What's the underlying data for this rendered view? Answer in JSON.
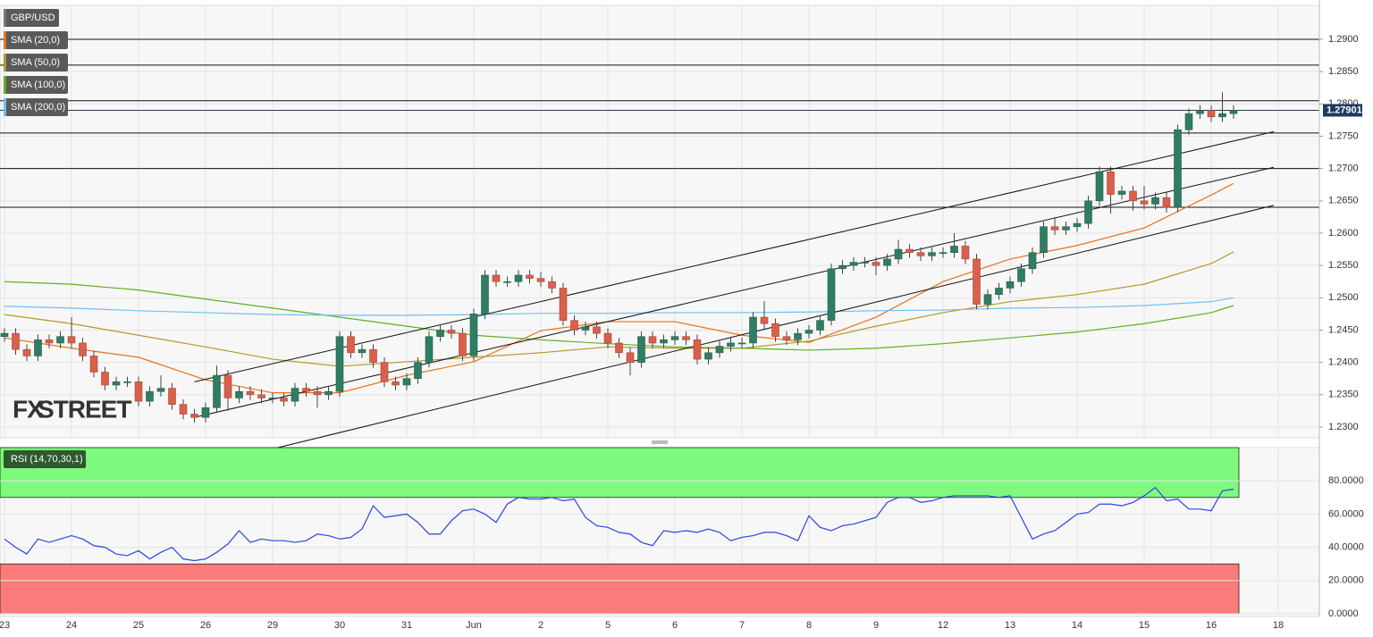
{
  "chart_data": [
    {
      "type": "candlestick",
      "title": "GBP/USD",
      "watermark": [
        "FX",
        "STREET"
      ],
      "up_color": "#2f7d62",
      "down_color": "#d9604a",
      "open": [
        1.244,
        1.2445,
        1.242,
        1.241,
        1.2435,
        1.243,
        1.244,
        1.243,
        1.241,
        1.2385,
        1.2365,
        1.237,
        1.237,
        1.234,
        1.2355,
        1.236,
        1.2335,
        1.232,
        1.2315,
        1.233,
        1.238,
        1.2345,
        1.2355,
        1.235,
        1.2345,
        1.2345,
        1.234,
        1.236,
        1.2355,
        1.235,
        1.2355,
        1.244,
        1.2415,
        1.242,
        1.24,
        1.237,
        1.2365,
        1.2375,
        1.24,
        1.244,
        1.245,
        1.2445,
        1.241,
        1.2475,
        1.2535,
        1.2525,
        1.2525,
        1.2535,
        1.253,
        1.2525,
        1.2515,
        1.2465,
        1.245,
        1.2455,
        1.2445,
        1.243,
        1.2415,
        1.24,
        1.244,
        1.243,
        1.2435,
        1.244,
        1.2435,
        1.2405,
        1.2415,
        1.2425,
        1.243,
        1.243,
        1.247,
        1.246,
        1.244,
        1.2435,
        1.2445,
        1.245,
        1.2465,
        1.2545,
        1.255,
        1.2555,
        1.2555,
        1.255,
        1.256,
        1.2575,
        1.257,
        1.2565,
        1.257,
        1.257,
        1.258,
        1.256,
        1.249,
        1.2505,
        1.2515,
        1.2525,
        1.2545,
        1.257,
        1.261,
        1.2605,
        1.261,
        1.2615,
        1.265,
        1.2695,
        1.266,
        1.2665,
        1.265,
        1.2645,
        1.2655,
        1.264,
        1.276,
        1.2785,
        1.279,
        1.278,
        1.2785
      ],
      "high": [
        1.2453,
        1.2453,
        1.2428,
        1.2443,
        1.2443,
        1.2448,
        1.247,
        1.2438,
        1.2418,
        1.2393,
        1.2378,
        1.2378,
        1.2378,
        1.2363,
        1.238,
        1.2368,
        1.2343,
        1.2328,
        1.2338,
        1.2395,
        1.2388,
        1.2363,
        1.2363,
        1.2358,
        1.2353,
        1.2353,
        1.2368,
        1.2368,
        1.2363,
        1.2363,
        1.2448,
        1.2448,
        1.2428,
        1.2428,
        1.2408,
        1.2378,
        1.2383,
        1.2408,
        1.2448,
        1.2458,
        1.2458,
        1.2453,
        1.2483,
        1.2543,
        1.2543,
        1.2533,
        1.2543,
        1.2543,
        1.254,
        1.2533,
        1.2523,
        1.2473,
        1.2463,
        1.2463,
        1.2453,
        1.2438,
        1.2423,
        1.2448,
        1.2448,
        1.2443,
        1.2448,
        1.2448,
        1.2443,
        1.2423,
        1.2433,
        1.2438,
        1.2438,
        1.2478,
        1.2495,
        1.2468,
        1.2448,
        1.2453,
        1.2458,
        1.2473,
        1.2553,
        1.2558,
        1.2563,
        1.2563,
        1.2563,
        1.2568,
        1.259,
        1.2583,
        1.2578,
        1.2578,
        1.2578,
        1.26,
        1.2588,
        1.2568,
        1.2513,
        1.2523,
        1.2533,
        1.2553,
        1.2578,
        1.2618,
        1.2625,
        1.2618,
        1.2623,
        1.2658,
        1.2703,
        1.2703,
        1.2673,
        1.2673,
        1.2673,
        1.2663,
        1.2663,
        1.2768,
        1.2793,
        1.2798,
        1.2798,
        1.2818,
        1.2798
      ],
      "low": [
        1.2432,
        1.2412,
        1.2402,
        1.2402,
        1.2422,
        1.2422,
        1.2422,
        1.2402,
        1.2377,
        1.2357,
        1.2357,
        1.2362,
        1.2332,
        1.2332,
        1.2347,
        1.2327,
        1.2312,
        1.2307,
        1.2307,
        1.2322,
        1.2325,
        1.2337,
        1.2342,
        1.2337,
        1.2337,
        1.2332,
        1.2332,
        1.2347,
        1.233,
        1.2342,
        1.2347,
        1.2407,
        1.2407,
        1.2392,
        1.2362,
        1.2357,
        1.2357,
        1.2367,
        1.2392,
        1.2432,
        1.2437,
        1.2402,
        1.2402,
        1.2467,
        1.2517,
        1.2517,
        1.2517,
        1.2522,
        1.2517,
        1.2507,
        1.2457,
        1.2442,
        1.2442,
        1.2437,
        1.2422,
        1.2407,
        1.238,
        1.2392,
        1.2422,
        1.2422,
        1.2427,
        1.2427,
        1.2397,
        1.2397,
        1.2407,
        1.2417,
        1.2422,
        1.2422,
        1.2452,
        1.2432,
        1.2427,
        1.2427,
        1.2437,
        1.2442,
        1.2457,
        1.2537,
        1.2542,
        1.2547,
        1.2535,
        1.2542,
        1.2552,
        1.2562,
        1.2557,
        1.2557,
        1.2562,
        1.2562,
        1.2552,
        1.2482,
        1.2482,
        1.2497,
        1.2507,
        1.2517,
        1.2537,
        1.2562,
        1.2597,
        1.2597,
        1.2602,
        1.2607,
        1.2642,
        1.263,
        1.2652,
        1.2635,
        1.2637,
        1.2637,
        1.2632,
        1.2632,
        1.2752,
        1.2777,
        1.2772,
        1.2772,
        1.2777
      ],
      "close": [
        1.2445,
        1.242,
        1.241,
        1.2435,
        1.243,
        1.244,
        1.243,
        1.241,
        1.2385,
        1.2365,
        1.237,
        1.237,
        1.234,
        1.2355,
        1.236,
        1.2335,
        1.232,
        1.2315,
        1.233,
        1.238,
        1.2345,
        1.2355,
        1.235,
        1.2345,
        1.2345,
        1.234,
        1.236,
        1.2355,
        1.235,
        1.2355,
        1.244,
        1.2415,
        1.242,
        1.24,
        1.237,
        1.2365,
        1.2375,
        1.24,
        1.244,
        1.245,
        1.2445,
        1.241,
        1.2475,
        1.2535,
        1.2525,
        1.2525,
        1.2535,
        1.253,
        1.2525,
        1.2515,
        1.2465,
        1.245,
        1.2455,
        1.2445,
        1.243,
        1.2415,
        1.24,
        1.244,
        1.243,
        1.2435,
        1.244,
        1.2435,
        1.2405,
        1.2415,
        1.2425,
        1.243,
        1.243,
        1.247,
        1.246,
        1.244,
        1.2435,
        1.2445,
        1.245,
        1.2465,
        1.2545,
        1.255,
        1.2555,
        1.2555,
        1.255,
        1.256,
        1.2575,
        1.257,
        1.2565,
        1.257,
        1.257,
        1.258,
        1.256,
        1.249,
        1.2505,
        1.2515,
        1.2525,
        1.2545,
        1.257,
        1.261,
        1.2605,
        1.261,
        1.2615,
        1.265,
        1.2695,
        1.266,
        1.2665,
        1.265,
        1.2645,
        1.2655,
        1.264,
        1.276,
        1.2785,
        1.279,
        1.278,
        1.2785,
        1.27901
      ],
      "series": [
        {
          "name": "SMA (20,0)",
          "color": "#e8731a",
          "x": [
            0,
            6,
            12,
            18,
            24,
            30,
            36,
            42,
            48,
            54,
            60,
            66,
            72,
            78,
            84,
            90,
            96,
            102,
            108,
            110
          ],
          "values": [
            1.2438,
            1.2422,
            1.2408,
            1.2373,
            1.2353,
            1.2353,
            1.238,
            1.2401,
            1.2449,
            1.2463,
            1.2463,
            1.2442,
            1.2431,
            1.247,
            1.2525,
            1.256,
            1.2581,
            1.2608,
            1.2659,
            1.2677
          ]
        },
        {
          "name": "SMA (50,0)",
          "color": "#b09a2a",
          "x": [
            0,
            6,
            12,
            18,
            24,
            30,
            36,
            42,
            48,
            54,
            60,
            66,
            72,
            78,
            84,
            90,
            96,
            102,
            108,
            110
          ],
          "values": [
            1.2474,
            1.246,
            1.2442,
            1.2424,
            1.2405,
            1.2394,
            1.2401,
            1.2408,
            1.2415,
            1.2424,
            1.2422,
            1.2422,
            1.2433,
            1.2456,
            1.2477,
            1.2494,
            1.2505,
            1.2521,
            1.2553,
            1.2571
          ]
        },
        {
          "name": "SMA (100,0)",
          "color": "#62ad23",
          "x": [
            0,
            6,
            12,
            18,
            24,
            30,
            36,
            42,
            48,
            54,
            60,
            66,
            72,
            78,
            84,
            90,
            96,
            102,
            108,
            110
          ],
          "values": [
            1.2525,
            1.2521,
            1.2512,
            1.2498,
            1.2484,
            1.247,
            1.2456,
            1.2442,
            1.2435,
            1.2429,
            1.2424,
            1.2422,
            1.2419,
            1.2422,
            1.2429,
            1.2438,
            1.2447,
            1.246,
            1.2477,
            1.2488
          ]
        },
        {
          "name": "SMA (200,0)",
          "color": "#6ec0f0",
          "x": [
            0,
            6,
            12,
            18,
            24,
            30,
            36,
            42,
            48,
            54,
            60,
            66,
            72,
            78,
            84,
            90,
            96,
            102,
            108,
            110
          ],
          "values": [
            1.2487,
            1.2484,
            1.248,
            1.2477,
            1.2474,
            1.2473,
            1.2473,
            1.2474,
            1.2476,
            1.2476,
            1.2477,
            1.2477,
            1.2478,
            1.248,
            1.2481,
            1.2484,
            1.2485,
            1.2488,
            1.2494,
            1.25
          ]
        }
      ],
      "hlines": [
        1.29,
        1.286,
        1.2805,
        1.2755,
        1.27,
        1.264
      ],
      "trendlines": [
        {
          "x": [
            17,
            113.6
          ],
          "y": [
            1.237,
            1.2757
          ]
        },
        {
          "x": [
            17,
            113.6
          ],
          "y": [
            1.2315,
            1.2702
          ]
        },
        {
          "x": [
            23,
            113.6
          ],
          "y": [
            1.2262,
            1.2643
          ]
        }
      ],
      "last_price": {
        "value": 1.27901,
        "label": "1.27901"
      },
      "xlim": [
        -0.4,
        117.68
      ],
      "xticks": [
        {
          "value": 0,
          "label": "23"
        },
        {
          "value": 6,
          "label": "24"
        },
        {
          "value": 12,
          "label": "25"
        },
        {
          "value": 18,
          "label": "26"
        },
        {
          "value": 24,
          "label": "29"
        },
        {
          "value": 30,
          "label": "30"
        },
        {
          "value": 36,
          "label": "31"
        },
        {
          "value": 42,
          "label": "Jun"
        },
        {
          "value": 48,
          "label": "2"
        },
        {
          "value": 54,
          "label": "5"
        },
        {
          "value": 60,
          "label": "6"
        },
        {
          "value": 66,
          "label": "7"
        },
        {
          "value": 72,
          "label": "8"
        },
        {
          "value": 78,
          "label": "9"
        },
        {
          "value": 84,
          "label": "12"
        },
        {
          "value": 90,
          "label": "13"
        },
        {
          "value": 96,
          "label": "14"
        },
        {
          "value": 102,
          "label": "15"
        },
        {
          "value": 108,
          "label": "16"
        },
        {
          "value": 114,
          "label": "18"
        }
      ],
      "ylim": [
        1.22834,
        1.29525
      ],
      "yticks": [
        {
          "value": 1.23,
          "label": "1.2300"
        },
        {
          "value": 1.235,
          "label": "1.2350"
        },
        {
          "value": 1.24,
          "label": "1.2400"
        },
        {
          "value": 1.245,
          "label": "1.2450"
        },
        {
          "value": 1.25,
          "label": "1.2500"
        },
        {
          "value": 1.255,
          "label": "1.2550"
        },
        {
          "value": 1.26,
          "label": "1.2600"
        },
        {
          "value": 1.265,
          "label": "1.2650"
        },
        {
          "value": 1.27,
          "label": "1.2700"
        },
        {
          "value": 1.275,
          "label": "1.2750"
        },
        {
          "value": 1.28,
          "label": "1.2800"
        },
        {
          "value": 1.285,
          "label": "1.2850"
        },
        {
          "value": 1.29,
          "label": "1.2900"
        }
      ],
      "grid": true
    },
    {
      "type": "line",
      "title": "RSI (14,70,30,1)",
      "color": "#2a44e0",
      "values": [
        45,
        40,
        36,
        45,
        43,
        45,
        47,
        45,
        41,
        40,
        36,
        35,
        38,
        33,
        37,
        40,
        33,
        32,
        33,
        37,
        42,
        50,
        43,
        45,
        44,
        44,
        43,
        44,
        48,
        47,
        45,
        46,
        51,
        65,
        58,
        59,
        60,
        55,
        48,
        48,
        56,
        62,
        63,
        60,
        55,
        66,
        70,
        69,
        69,
        70,
        68,
        69,
        58,
        53,
        52,
        49,
        48,
        43,
        41,
        50,
        49,
        50,
        49,
        51,
        49,
        44,
        46,
        47,
        49,
        49,
        47,
        44,
        59,
        52,
        50,
        53,
        54,
        56,
        58,
        67,
        70,
        70,
        67,
        68,
        70,
        71,
        71,
        71,
        71,
        70,
        71,
        58,
        45,
        48,
        50,
        55,
        60,
        61,
        66,
        66,
        65,
        67,
        71,
        76,
        68,
        69,
        63,
        63,
        62,
        74,
        75
      ],
      "bands": [
        {
          "from": 70,
          "to": 100,
          "color": "#7dfa7d"
        },
        {
          "from": 0,
          "to": 30,
          "color": "#fb7b7b"
        }
      ],
      "ylim": [
        -1.6,
        100
      ],
      "yticks": [
        {
          "value": 0,
          "label": "0.0000"
        },
        {
          "value": 20,
          "label": "20.0000"
        },
        {
          "value": 40,
          "label": "40.0000"
        },
        {
          "value": 60,
          "label": "60.0000"
        },
        {
          "value": 80,
          "label": "80.0000"
        }
      ],
      "grid": true
    }
  ]
}
